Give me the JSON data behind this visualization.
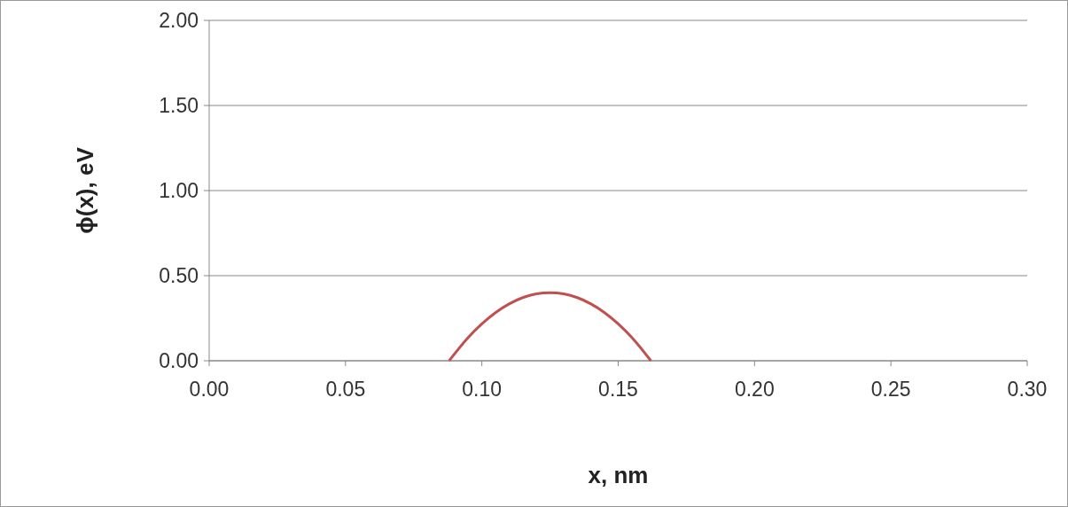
{
  "chart_data": {
    "type": "line",
    "xlabel": "x, nm",
    "ylabel": "ϕ(x), eV",
    "xlim": [
      0,
      0.3
    ],
    "ylim": [
      0,
      2
    ],
    "xticks": [
      {
        "value": 0,
        "label": "0.00"
      },
      {
        "value": 0.05,
        "label": "0.05"
      },
      {
        "value": 0.1,
        "label": "0.10"
      },
      {
        "value": 0.15,
        "label": "0.15"
      },
      {
        "value": 0.2,
        "label": "0.20"
      },
      {
        "value": 0.25,
        "label": "0.25"
      },
      {
        "value": 0.3,
        "label": "0.30"
      }
    ],
    "yticks": [
      {
        "value": 0,
        "label": "0.00"
      },
      {
        "value": 0.5,
        "label": "0.50"
      },
      {
        "value": 1,
        "label": "1.00"
      },
      {
        "value": 1.5,
        "label": "1.50"
      },
      {
        "value": 2,
        "label": "2.00"
      }
    ],
    "grid": "y",
    "marker": "none",
    "line_style": "solid",
    "series": [
      {
        "color": "#c0504d",
        "x": [
          0.088,
          0.095,
          0.1,
          0.105,
          0.11,
          0.115,
          0.12,
          0.125,
          0.13,
          0.135,
          0.14,
          0.145,
          0.15,
          0.155,
          0.162
        ],
        "values": [
          0,
          0.137,
          0.217,
          0.283,
          0.334,
          0.371,
          0.393,
          0.4,
          0.393,
          0.371,
          0.334,
          0.283,
          0.217,
          0.137,
          0
        ]
      }
    ]
  }
}
